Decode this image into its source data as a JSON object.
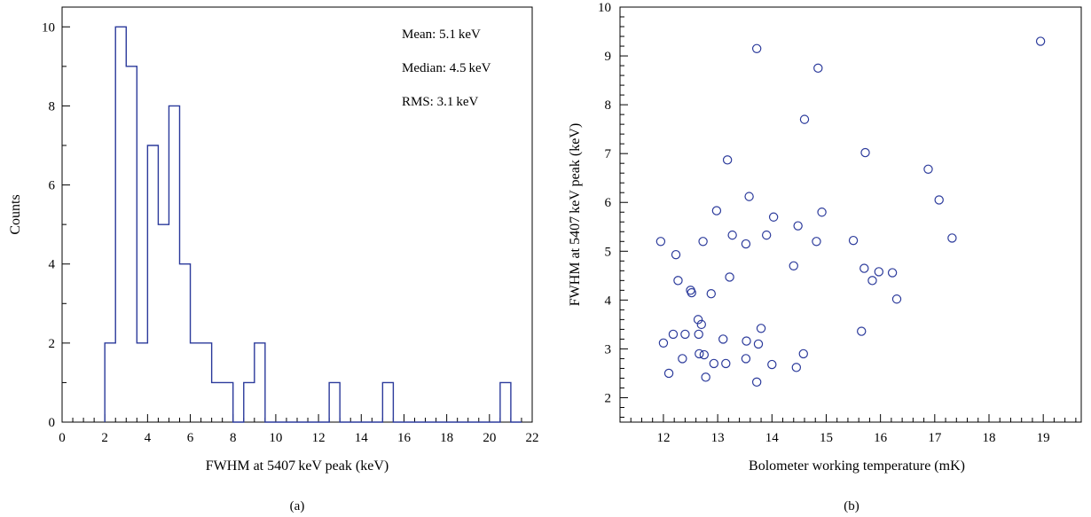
{
  "chart_data": [
    {
      "type": "histogram",
      "panel_label": "(a)",
      "xlabel": "FWHM at 5407 keV peak (keV)",
      "ylabel": "Counts",
      "xlim": [
        0,
        22
      ],
      "ylim": [
        0,
        10.5
      ],
      "x_ticks": [
        0,
        2,
        4,
        6,
        8,
        10,
        12,
        14,
        16,
        18,
        20,
        22
      ],
      "y_ticks": [
        0,
        2,
        4,
        6,
        8,
        10
      ],
      "bin_width": 0.5,
      "bin_start": 2.0,
      "counts": [
        2,
        10,
        9,
        2,
        7,
        5,
        8,
        4,
        2,
        2,
        1,
        1,
        0,
        1,
        2,
        0,
        0,
        0,
        0,
        0,
        0,
        1,
        0,
        0,
        0,
        0,
        1,
        0,
        0,
        0,
        0,
        0,
        0,
        0,
        0,
        0,
        0,
        1,
        0
      ],
      "annotations": [
        "Mean: 5.1 keV",
        "Median: 4.5 keV",
        "RMS: 3.1 keV"
      ],
      "color": "#2b3a9b"
    },
    {
      "type": "scatter",
      "panel_label": "(b)",
      "xlabel": "Bolometer working temperature (mK)",
      "ylabel": "FWHM at 5407 keV peak (keV)",
      "xlim": [
        11.2,
        19.7
      ],
      "ylim": [
        1.5,
        10
      ],
      "x_ticks": [
        12,
        13,
        14,
        15,
        16,
        17,
        18,
        19
      ],
      "y_ticks": [
        2,
        3,
        4,
        5,
        6,
        7,
        8,
        9,
        10
      ],
      "color": "#2b3a9b",
      "points": [
        [
          11.95,
          5.2
        ],
        [
          12.0,
          3.12
        ],
        [
          12.1,
          2.5
        ],
        [
          12.18,
          3.3
        ],
        [
          12.23,
          4.93
        ],
        [
          12.27,
          4.4
        ],
        [
          12.35,
          2.8
        ],
        [
          12.4,
          3.3
        ],
        [
          12.5,
          4.2
        ],
        [
          12.52,
          4.15
        ],
        [
          12.64,
          3.6
        ],
        [
          12.65,
          3.3
        ],
        [
          12.66,
          2.9
        ],
        [
          12.7,
          3.5
        ],
        [
          12.73,
          5.2
        ],
        [
          12.75,
          2.88
        ],
        [
          12.78,
          2.42
        ],
        [
          12.88,
          4.13
        ],
        [
          12.93,
          2.7
        ],
        [
          12.98,
          5.83
        ],
        [
          13.1,
          3.2
        ],
        [
          13.15,
          2.7
        ],
        [
          13.18,
          6.87
        ],
        [
          13.22,
          4.47
        ],
        [
          13.27,
          5.33
        ],
        [
          13.52,
          5.15
        ],
        [
          13.52,
          2.8
        ],
        [
          13.53,
          3.16
        ],
        [
          13.58,
          6.12
        ],
        [
          13.72,
          9.15
        ],
        [
          13.72,
          2.32
        ],
        [
          13.75,
          3.1
        ],
        [
          13.8,
          3.42
        ],
        [
          13.9,
          5.33
        ],
        [
          14.0,
          2.68
        ],
        [
          14.03,
          5.7
        ],
        [
          14.4,
          4.7
        ],
        [
          14.45,
          2.62
        ],
        [
          14.48,
          5.52
        ],
        [
          14.58,
          2.9
        ],
        [
          14.6,
          7.7
        ],
        [
          14.82,
          5.2
        ],
        [
          14.85,
          8.75
        ],
        [
          14.92,
          5.8
        ],
        [
          15.5,
          5.22
        ],
        [
          15.65,
          3.36
        ],
        [
          15.7,
          4.65
        ],
        [
          15.72,
          7.02
        ],
        [
          15.85,
          4.4
        ],
        [
          15.97,
          4.58
        ],
        [
          16.22,
          4.56
        ],
        [
          16.3,
          4.02
        ],
        [
          16.88,
          6.68
        ],
        [
          17.08,
          6.05
        ],
        [
          17.32,
          5.27
        ],
        [
          18.95,
          9.3
        ]
      ]
    }
  ]
}
